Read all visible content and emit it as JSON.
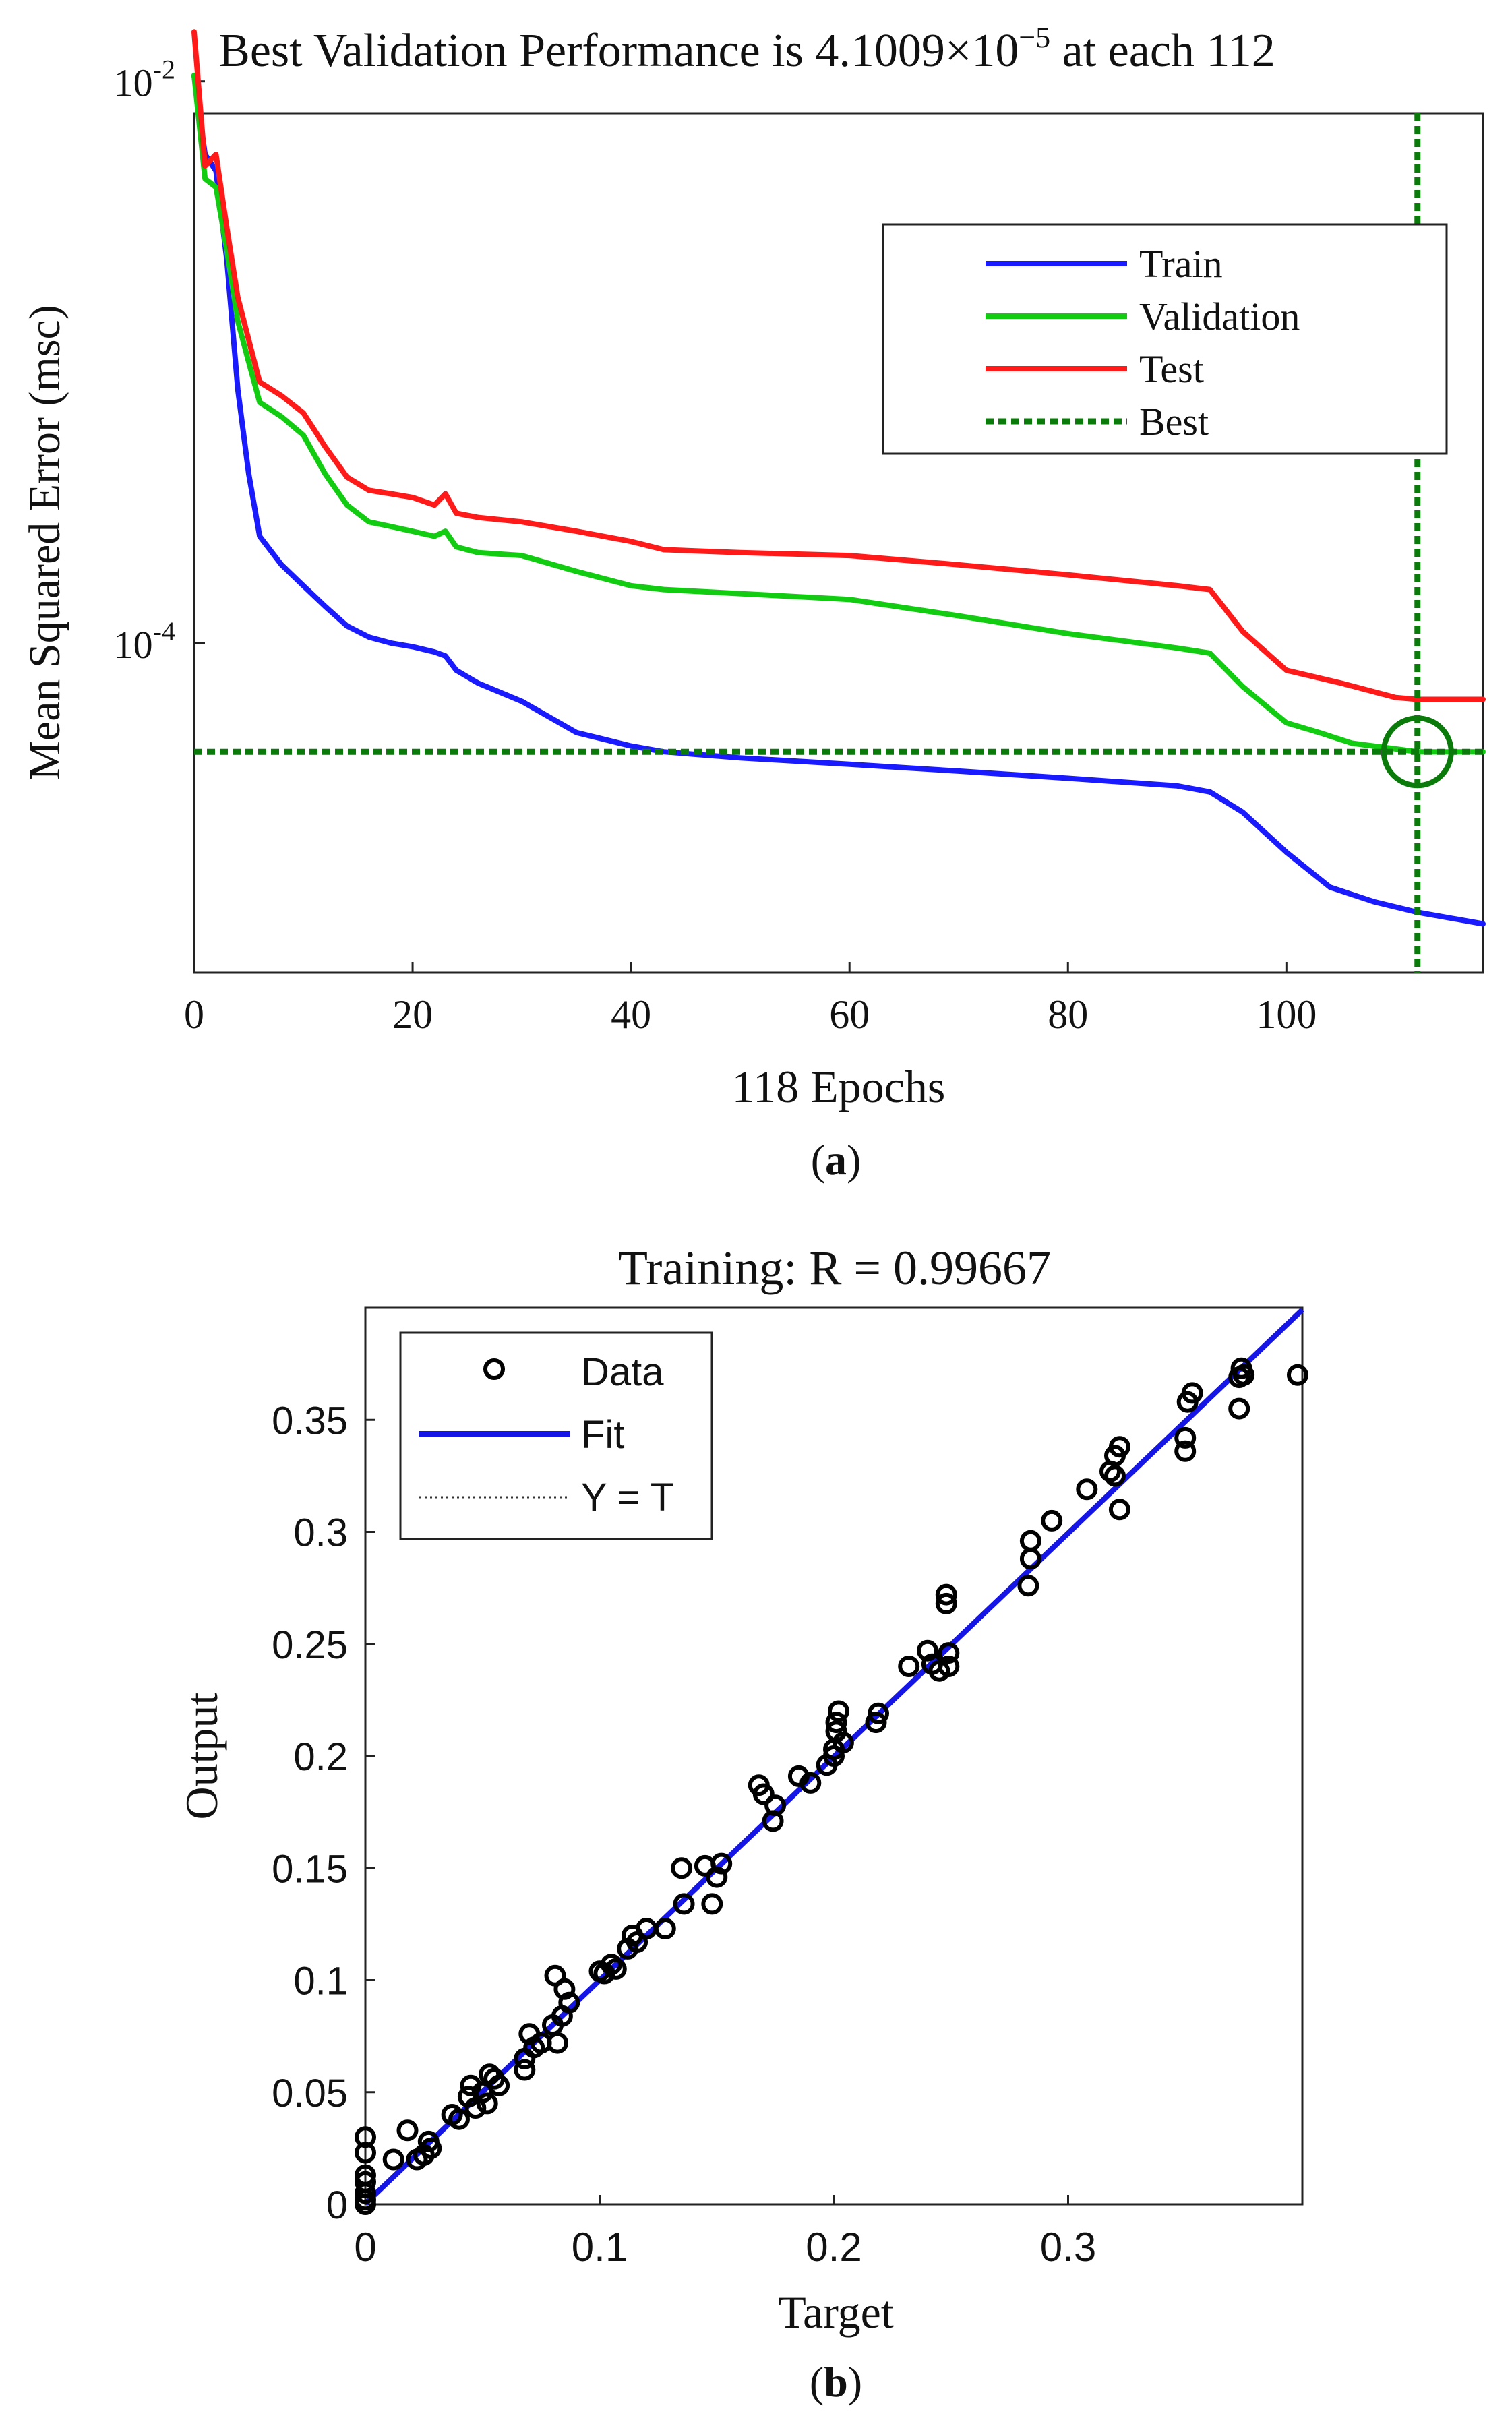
{
  "chart_data": [
    {
      "type": "line",
      "panel_label": "a",
      "title_prefix": "Best Validation Performance is 4.1009",
      "title_times": "×10",
      "title_exp": "−5",
      "title_suffix": " at each 112",
      "xlabel": "118 Epochs",
      "ylabel": "Mean Squared Error  (msc)",
      "xlim": [
        0,
        118
      ],
      "ylim": [
        6.7e-06,
        0.0077
      ],
      "yscale": "log",
      "x_ticks": [
        0,
        20,
        40,
        60,
        80,
        100
      ],
      "x_tick_labels": [
        "0",
        "20",
        "40",
        "60",
        "80",
        "100"
      ],
      "y_ticks": [
        {
          "value": 0.01,
          "base": "10",
          "exp": "-2"
        },
        {
          "value": 0.0001,
          "base": "10",
          "exp": "-4"
        }
      ],
      "legend": {
        "position": "top-right",
        "entries": [
          "Train",
          "Validation",
          "Test",
          "Best"
        ]
      },
      "best": {
        "epoch": 112,
        "value": 4.1e-05
      },
      "series": [
        {
          "name": "Train",
          "color": "#1a1aff",
          "x": [
            0,
            1,
            2,
            3,
            4,
            5,
            6,
            8,
            10,
            12,
            14,
            16,
            18,
            20,
            22,
            23,
            24,
            26,
            30,
            35,
            40,
            43,
            50,
            60,
            70,
            80,
            90,
            93,
            96,
            100,
            104,
            108,
            112,
            118
          ],
          "y": [
            0.0105,
            0.0055,
            0.0048,
            0.0023,
            0.0008,
            0.0004,
            0.00024,
            0.00019,
            0.00016,
            0.000135,
            0.000115,
            0.000105,
            0.0001,
            9.7e-05,
            9.3e-05,
            9e-05,
            8e-05,
            7.2e-05,
            6.2e-05,
            4.8e-05,
            4.3e-05,
            4.1e-05,
            3.9e-05,
            3.7e-05,
            3.5e-05,
            3.3e-05,
            3.1e-05,
            2.95e-05,
            2.5e-05,
            1.8e-05,
            1.35e-05,
            1.2e-05,
            1.1e-05,
            1e-05
          ]
        },
        {
          "name": "Validation",
          "color": "#11cc11",
          "x": [
            0,
            1,
            2,
            3,
            4,
            5,
            6,
            8,
            10,
            12,
            14,
            16,
            18,
            20,
            22,
            23,
            24,
            26,
            30,
            35,
            40,
            43,
            50,
            60,
            70,
            80,
            90,
            93,
            96,
            100,
            103,
            106,
            110,
            112,
            118
          ],
          "y": [
            0.0105,
            0.0045,
            0.0042,
            0.0025,
            0.0014,
            0.001,
            0.00072,
            0.00064,
            0.00055,
            0.0004,
            0.00031,
            0.00027,
            0.00026,
            0.00025,
            0.00024,
            0.00025,
            0.00022,
            0.00021,
            0.000205,
            0.00018,
            0.00016,
            0.000155,
            0.00015,
            0.000143,
            0.000125,
            0.000108,
            9.6e-05,
            9.2e-05,
            7e-05,
            5.2e-05,
            4.8e-05,
            4.4e-05,
            4.2e-05,
            4.1e-05,
            4.1e-05
          ]
        },
        {
          "name": "Test",
          "color": "#ff1a1a",
          "x": [
            0,
            1,
            2,
            3,
            4,
            5,
            6,
            8,
            10,
            12,
            14,
            16,
            18,
            20,
            22,
            23,
            24,
            26,
            30,
            35,
            40,
            43,
            50,
            60,
            70,
            80,
            90,
            93,
            96,
            100,
            105,
            110,
            112,
            118
          ],
          "y": [
            0.015,
            0.005,
            0.0055,
            0.003,
            0.0017,
            0.0012,
            0.00085,
            0.00076,
            0.00066,
            0.0005,
            0.00039,
            0.00035,
            0.00034,
            0.00033,
            0.00031,
            0.00034,
            0.00029,
            0.00028,
            0.00027,
            0.00025,
            0.00023,
            0.000215,
            0.00021,
            0.000205,
            0.00019,
            0.000175,
            0.00016,
            0.000155,
            0.00011,
            8e-05,
            7.2e-05,
            6.4e-05,
            6.3e-05,
            6.3e-05
          ]
        }
      ]
    },
    {
      "type": "scatter",
      "panel_label": "b",
      "title": "Training: R = 0.99667",
      "xlabel": "Target",
      "ylabel": "Output",
      "xlim": [
        0,
        0.4
      ],
      "ylim": [
        0,
        0.4
      ],
      "x_ticks": [
        0,
        0.1,
        0.2,
        0.3
      ],
      "x_tick_labels": [
        "0",
        "0.1",
        "0.2",
        "0.3"
      ],
      "y_ticks": [
        0,
        0.05,
        0.1,
        0.15,
        0.2,
        0.25,
        0.3,
        0.35
      ],
      "y_tick_labels": [
        "0",
        "0.05",
        "0.1",
        "0.15",
        "0.2",
        "0.25",
        "0.3",
        "0.35"
      ],
      "legend": {
        "position": "top-left",
        "entries": [
          "Data",
          "Fit",
          "Y = T"
        ]
      },
      "fit": {
        "slope": 0.997,
        "intercept": 0.0003,
        "color": "#1515e6"
      },
      "points": [
        [
          0.0,
          0.0
        ],
        [
          0.0,
          0.002
        ],
        [
          0.0,
          0.005
        ],
        [
          0.0,
          0.01
        ],
        [
          0.0,
          0.013
        ],
        [
          0.0,
          0.023
        ],
        [
          0.0,
          0.03
        ],
        [
          0.012,
          0.02
        ],
        [
          0.018,
          0.033
        ],
        [
          0.022,
          0.02
        ],
        [
          0.025,
          0.022
        ],
        [
          0.027,
          0.028
        ],
        [
          0.028,
          0.025
        ],
        [
          0.037,
          0.04
        ],
        [
          0.04,
          0.038
        ],
        [
          0.044,
          0.048
        ],
        [
          0.045,
          0.053
        ],
        [
          0.047,
          0.043
        ],
        [
          0.05,
          0.05
        ],
        [
          0.052,
          0.045
        ],
        [
          0.053,
          0.058
        ],
        [
          0.055,
          0.056
        ],
        [
          0.057,
          0.053
        ],
        [
          0.068,
          0.065
        ],
        [
          0.068,
          0.06
        ],
        [
          0.07,
          0.076
        ],
        [
          0.072,
          0.07
        ],
        [
          0.075,
          0.072
        ],
        [
          0.08,
          0.08
        ],
        [
          0.081,
          0.102
        ],
        [
          0.082,
          0.072
        ],
        [
          0.084,
          0.084
        ],
        [
          0.085,
          0.096
        ],
        [
          0.087,
          0.09
        ],
        [
          0.1,
          0.104
        ],
        [
          0.102,
          0.103
        ],
        [
          0.105,
          0.107
        ],
        [
          0.107,
          0.105
        ],
        [
          0.112,
          0.114
        ],
        [
          0.114,
          0.12
        ],
        [
          0.116,
          0.117
        ],
        [
          0.12,
          0.123
        ],
        [
          0.128,
          0.123
        ],
        [
          0.135,
          0.15
        ],
        [
          0.136,
          0.134
        ],
        [
          0.145,
          0.151
        ],
        [
          0.148,
          0.134
        ],
        [
          0.15,
          0.146
        ],
        [
          0.152,
          0.152
        ],
        [
          0.168,
          0.187
        ],
        [
          0.17,
          0.183
        ],
        [
          0.174,
          0.171
        ],
        [
          0.175,
          0.178
        ],
        [
          0.185,
          0.191
        ],
        [
          0.19,
          0.188
        ],
        [
          0.197,
          0.196
        ],
        [
          0.2,
          0.2
        ],
        [
          0.2,
          0.203
        ],
        [
          0.201,
          0.211
        ],
        [
          0.201,
          0.215
        ],
        [
          0.202,
          0.22
        ],
        [
          0.204,
          0.206
        ],
        [
          0.218,
          0.215
        ],
        [
          0.219,
          0.219
        ],
        [
          0.232,
          0.24
        ],
        [
          0.24,
          0.247
        ],
        [
          0.242,
          0.241
        ],
        [
          0.245,
          0.238
        ],
        [
          0.248,
          0.268
        ],
        [
          0.248,
          0.272
        ],
        [
          0.249,
          0.246
        ],
        [
          0.249,
          0.24
        ],
        [
          0.283,
          0.276
        ],
        [
          0.284,
          0.288
        ],
        [
          0.284,
          0.296
        ],
        [
          0.293,
          0.305
        ],
        [
          0.308,
          0.319
        ],
        [
          0.318,
          0.327
        ],
        [
          0.32,
          0.325
        ],
        [
          0.32,
          0.334
        ],
        [
          0.322,
          0.338
        ],
        [
          0.322,
          0.31
        ],
        [
          0.35,
          0.336
        ],
        [
          0.35,
          0.342
        ],
        [
          0.351,
          0.358
        ],
        [
          0.353,
          0.362
        ],
        [
          0.373,
          0.369
        ],
        [
          0.374,
          0.373
        ],
        [
          0.373,
          0.355
        ],
        [
          0.375,
          0.37
        ],
        [
          0.398,
          0.37
        ]
      ]
    }
  ]
}
